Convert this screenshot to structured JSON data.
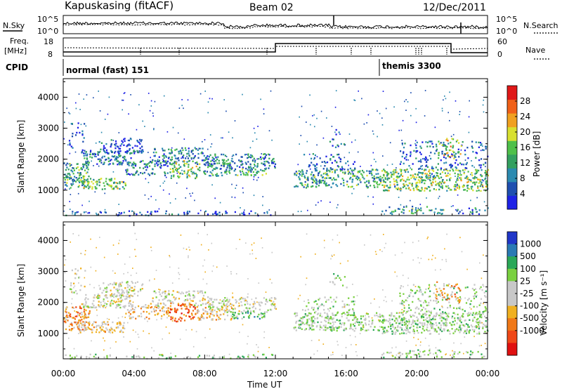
{
  "header": {
    "station": "Kapuskasing (fitACF)",
    "beam": "Beam 02",
    "date": "12/Dec/2011"
  },
  "noise_panel": {
    "left_label": "N.Sky",
    "right_label": "N.Search",
    "tick_top": "10^5",
    "tick_bottom": "10^0"
  },
  "freq_panel": {
    "left_label_1": "Freq.",
    "left_label_2": "[MHz]",
    "left_ticks": [
      "18",
      "8"
    ],
    "right_label": "Nave",
    "right_ticks": [
      "60",
      "0"
    ]
  },
  "cpid_panel": {
    "label": "CPID",
    "modes": [
      {
        "name": "normal (fast) 151",
        "start_hour": 0,
        "end_hour": 18
      },
      {
        "name": "themis 3300",
        "start_hour": 18,
        "end_hour": 24
      }
    ]
  },
  "colors": {
    "power_scale": [
      "#1e22e6",
      "#1f4fb0",
      "#2b8ab0",
      "#34a060",
      "#4fc04a",
      "#d8e030",
      "#f0a020",
      "#f06018",
      "#e01818"
    ],
    "velocity_scale": [
      "#2036c8",
      "#2a7ab4",
      "#2aa858",
      "#7ad040",
      "#c8c8c8",
      "#c8c8c8",
      "#f0b020",
      "#f07818",
      "#f04818",
      "#e01010"
    ]
  },
  "chart_data": [
    {
      "type": "heatmap",
      "title": "",
      "xlabel": "Time UT",
      "ylabel": "Slant Range [km]",
      "x_ticks": [
        "00:00",
        "04:00",
        "08:00",
        "12:00",
        "16:00",
        "20:00",
        "00:00"
      ],
      "y_ticks": [
        "1000",
        "2000",
        "3000",
        "4000"
      ],
      "xlim_hours": [
        0,
        24
      ],
      "ylim_km": [
        180,
        4600
      ],
      "colorbar_label": "Power [dB]",
      "colorbar_ticks": [
        "4",
        "8",
        "12",
        "16",
        "20",
        "24",
        "28"
      ],
      "colorbar_range": [
        0,
        32
      ]
    },
    {
      "type": "heatmap",
      "title": "",
      "xlabel": "Time UT",
      "ylabel": "Slant Range [km]",
      "x_ticks": [
        "00:00",
        "04:00",
        "08:00",
        "12:00",
        "16:00",
        "20:00",
        "00:00"
      ],
      "y_ticks": [
        "1000",
        "2000",
        "3000",
        "4000"
      ],
      "xlim_hours": [
        0,
        24
      ],
      "ylim_km": [
        180,
        4600
      ],
      "colorbar_label": "Velocity [m s⁻¹]",
      "colorbar_ticks": [
        "1000",
        "500",
        "100",
        "25",
        "-25",
        "-100",
        "-500",
        "-1000"
      ]
    }
  ]
}
